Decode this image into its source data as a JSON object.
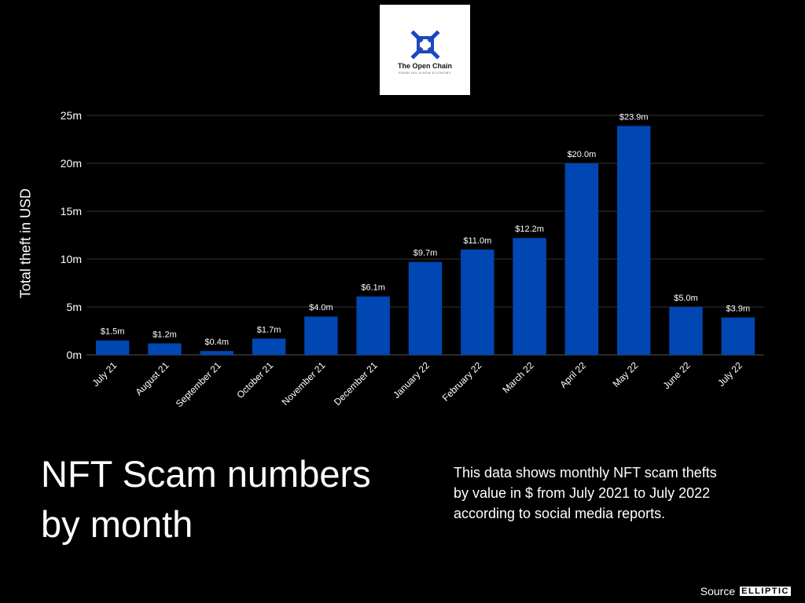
{
  "logo": {
    "name": "The Open Chain",
    "tagline": "ENABLING A NEW ECONOMY",
    "color": "#1a47c2"
  },
  "headline": "NFT Scam numbers by month",
  "description": "This data shows monthly NFT scam thefts by value in $ from July 2021 to July 2022 according to social media reports.",
  "source": {
    "label": "Source",
    "logo_text": "ELLIPTIC"
  },
  "colors": {
    "background": "#000000",
    "bar": "#0047b3",
    "grid": "#333333",
    "text": "#ffffff"
  },
  "chart_data": {
    "type": "bar",
    "title": "",
    "xlabel": "",
    "ylabel": "Total theft in USD",
    "categories": [
      "July 21",
      "August 21",
      "September 21",
      "October 21",
      "November 21",
      "December 21",
      "January 22",
      "February 22",
      "March 22",
      "April 22",
      "May 22",
      "June 22",
      "July 22"
    ],
    "values": [
      1.5,
      1.2,
      0.4,
      1.7,
      4.0,
      6.1,
      9.7,
      11.0,
      12.2,
      20.0,
      23.9,
      5.0,
      3.9
    ],
    "data_labels": [
      "$1.5m",
      "$1.2m",
      "$0.4m",
      "$1.7m",
      "$4.0m",
      "$6.1m",
      "$9.7m",
      "$11.0m",
      "$12.2m",
      "$20.0m",
      "$23.9m",
      "$5.0m",
      "$3.9m"
    ],
    "unit": "million USD",
    "ylim": [
      0,
      25
    ],
    "yticks": [
      0,
      5,
      10,
      15,
      20,
      25
    ],
    "ytick_labels": [
      "0m",
      "5m",
      "10m",
      "15m",
      "20m",
      "25m"
    ],
    "grid": true,
    "legend": "none"
  }
}
